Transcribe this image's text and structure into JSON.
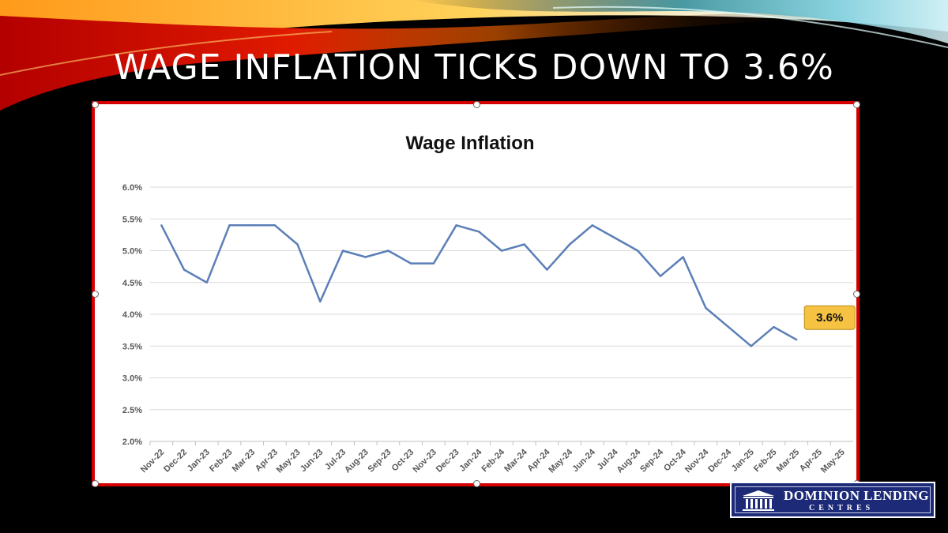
{
  "slide": {
    "title": "WAGE INFLATION TICKS DOWN TO 3.6%"
  },
  "logo": {
    "name": "DOMINION LENDING",
    "subtitle": "CENTRES"
  },
  "colors": {
    "line": "#5b7fb7",
    "callout_fill": "#f5c242",
    "frame": "#d40000",
    "logo_bg": "#1c2a78"
  },
  "chart_data": {
    "type": "line",
    "title": "Wage Inflation",
    "xlabel": "",
    "ylabel": "",
    "categories": [
      "Nov-22",
      "Dec-22",
      "Jan-23",
      "Feb-23",
      "Mar-23",
      "Apr-23",
      "May-23",
      "Jun-23",
      "Jul-23",
      "Aug-23",
      "Sep-23",
      "Oct-23",
      "Nov-23",
      "Dec-23",
      "Jan-24",
      "Feb-24",
      "Mar-24",
      "Apr-24",
      "May-24",
      "Jun-24",
      "Jul-24",
      "Aug-24",
      "Sep-24",
      "Oct-24",
      "Nov-24",
      "Dec-24",
      "Jan-25",
      "Feb-25",
      "Mar-25",
      "Apr-25",
      "May-25"
    ],
    "series": [
      {
        "values": [
          5.4,
          4.7,
          4.5,
          5.4,
          5.4,
          5.4,
          5.1,
          4.2,
          5.0,
          4.9,
          5.0,
          4.8,
          4.8,
          5.4,
          5.3,
          5.0,
          5.1,
          4.7,
          5.1,
          5.4,
          5.2,
          5.0,
          4.6,
          4.9,
          4.1,
          3.8,
          3.5,
          3.8,
          3.6,
          null,
          null
        ]
      }
    ],
    "ylim": [
      2.0,
      6.0
    ],
    "yticks": [
      "2.0%",
      "2.5%",
      "3.0%",
      "3.5%",
      "4.0%",
      "4.5%",
      "5.0%",
      "5.5%",
      "6.0%"
    ],
    "grid": true,
    "legend": "none",
    "annotation": {
      "label": "3.6%",
      "category": "Mar-25"
    }
  }
}
